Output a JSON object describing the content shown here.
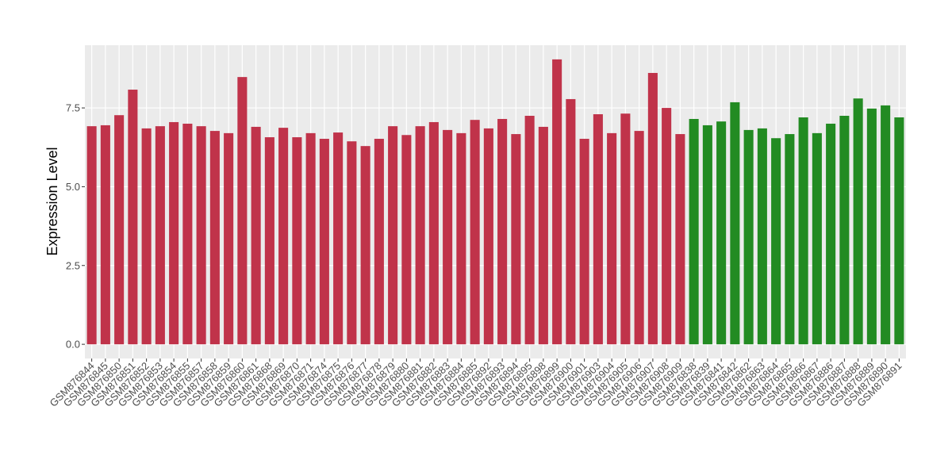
{
  "chart_data": {
    "type": "bar",
    "y_label": "Expression Level",
    "categories": [
      "GSM876844",
      "GSM876845",
      "GSM876850",
      "GSM876851",
      "GSM876852",
      "GSM876853",
      "GSM876854",
      "GSM876855",
      "GSM876857",
      "GSM876858",
      "GSM876859",
      "GSM876860",
      "GSM876861",
      "GSM876868",
      "GSM876869",
      "GSM876870",
      "GSM876871",
      "GSM876874",
      "GSM876875",
      "GSM876876",
      "GSM876877",
      "GSM876878",
      "GSM876879",
      "GSM876880",
      "GSM876881",
      "GSM876882",
      "GSM876883",
      "GSM876884",
      "GSM876885",
      "GSM876892",
      "GSM876893",
      "GSM876894",
      "GSM876895",
      "GSM876898",
      "GSM876899",
      "GSM876900",
      "GSM876901",
      "GSM876903",
      "GSM876904",
      "GSM876905",
      "GSM876906",
      "GSM876907",
      "GSM876908",
      "GSM876909",
      "GSM876838",
      "GSM876839",
      "GSM876841",
      "GSM876842",
      "GSM876862",
      "GSM876863",
      "GSM876864",
      "GSM876865",
      "GSM876866",
      "GSM876867",
      "GSM876886",
      "GSM876887",
      "GSM876888",
      "GSM876889",
      "GSM876890",
      "GSM876891"
    ],
    "values": [
      6.92,
      6.95,
      7.27,
      8.08,
      6.85,
      6.92,
      7.05,
      7.0,
      6.92,
      6.77,
      6.7,
      8.48,
      6.9,
      6.57,
      6.87,
      6.57,
      6.7,
      6.52,
      6.72,
      6.44,
      6.29,
      6.52,
      6.92,
      6.64,
      6.92,
      7.05,
      6.8,
      6.7,
      7.12,
      6.85,
      7.15,
      6.67,
      7.25,
      6.9,
      9.04,
      7.78,
      6.52,
      7.3,
      6.7,
      7.32,
      6.77,
      8.61,
      7.5,
      6.67,
      7.15,
      6.95,
      7.07,
      7.68,
      6.8,
      6.85,
      6.54,
      6.67,
      7.2,
      6.7,
      7.0,
      7.25,
      7.8,
      7.48,
      7.58,
      7.2
    ],
    "colors": [
      "#c0334a",
      "#c0334a",
      "#c0334a",
      "#c0334a",
      "#c0334a",
      "#c0334a",
      "#c0334a",
      "#c0334a",
      "#c0334a",
      "#c0334a",
      "#c0334a",
      "#c0334a",
      "#c0334a",
      "#c0334a",
      "#c0334a",
      "#c0334a",
      "#c0334a",
      "#c0334a",
      "#c0334a",
      "#c0334a",
      "#c0334a",
      "#c0334a",
      "#c0334a",
      "#c0334a",
      "#c0334a",
      "#c0334a",
      "#c0334a",
      "#c0334a",
      "#c0334a",
      "#c0334a",
      "#c0334a",
      "#c0334a",
      "#c0334a",
      "#c0334a",
      "#c0334a",
      "#c0334a",
      "#c0334a",
      "#c0334a",
      "#c0334a",
      "#c0334a",
      "#c0334a",
      "#c0334a",
      "#c0334a",
      "#c0334a",
      "#228b22",
      "#228b22",
      "#228b22",
      "#228b22",
      "#228b22",
      "#228b22",
      "#228b22",
      "#228b22",
      "#228b22",
      "#228b22",
      "#228b22",
      "#228b22",
      "#228b22",
      "#228b22",
      "#228b22",
      "#228b22"
    ],
    "ylim": [
      -0.45,
      9.49
    ],
    "yticks": [
      {
        "value": 0,
        "label": "0.0"
      },
      2.5,
      {
        "value": 5,
        "label": "5.0"
      },
      7.5
    ],
    "grid": true
  }
}
